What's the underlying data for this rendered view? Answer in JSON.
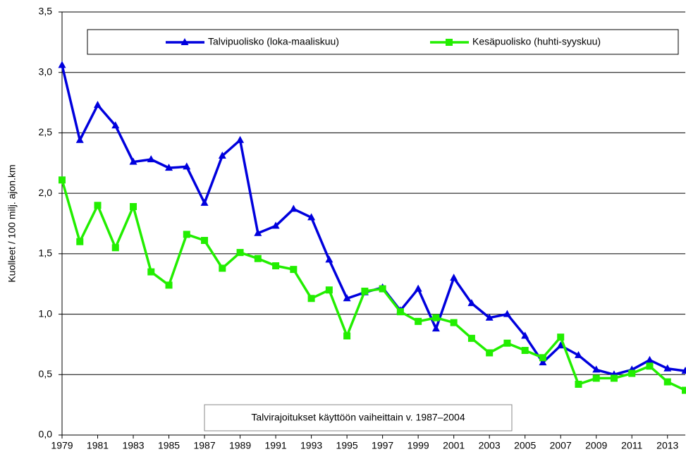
{
  "chart_data": {
    "type": "line",
    "y_label": "Kuolleet / 100 milj. ajon.km",
    "annotation": "Talvirajoitukset käyttöön vaiheittain v. 1987–2004",
    "x": [
      1979,
      1980,
      1981,
      1982,
      1983,
      1984,
      1985,
      1986,
      1987,
      1988,
      1989,
      1990,
      1991,
      1992,
      1993,
      1994,
      1995,
      1996,
      1997,
      1998,
      1999,
      2000,
      2001,
      2002,
      2003,
      2004,
      2005,
      2006,
      2007,
      2008,
      2009,
      2010,
      2011,
      2012,
      2013,
      2014
    ],
    "series": [
      {
        "name": "Talvipuolisko (loka-maaliskuu)",
        "color": "#0000dd",
        "marker": "triangle",
        "values": [
          3.06,
          2.44,
          2.73,
          2.56,
          2.26,
          2.28,
          2.21,
          2.22,
          1.92,
          2.31,
          2.44,
          1.67,
          1.73,
          1.87,
          1.8,
          1.45,
          1.13,
          1.18,
          1.22,
          1.03,
          1.21,
          0.88,
          1.3,
          1.09,
          0.97,
          1.0,
          0.82,
          0.6,
          0.74,
          0.66,
          0.54,
          0.5,
          0.54,
          0.62,
          0.55,
          0.53
        ]
      },
      {
        "name": "Kesäpuolisko (huhti-syyskuu)",
        "color": "#22ee00",
        "marker": "square",
        "values": [
          2.11,
          1.6,
          1.9,
          1.55,
          1.89,
          1.35,
          1.24,
          1.66,
          1.61,
          1.38,
          1.51,
          1.46,
          1.4,
          1.37,
          1.13,
          1.2,
          0.82,
          1.19,
          1.21,
          1.02,
          0.94,
          0.97,
          0.93,
          0.8,
          0.68,
          0.76,
          0.7,
          0.64,
          0.81,
          0.42,
          0.47,
          0.47,
          0.51,
          0.57,
          0.44,
          0.37
        ]
      }
    ],
    "xlim": [
      1979,
      2014
    ],
    "xticks": [
      1979,
      1981,
      1983,
      1985,
      1987,
      1989,
      1991,
      1993,
      1995,
      1997,
      1999,
      2001,
      2003,
      2005,
      2007,
      2009,
      2011,
      2013
    ],
    "ylim": [
      0,
      3.5
    ],
    "yticks": [
      {
        "value": 0,
        "label": "0,0"
      },
      {
        "value": 0.5,
        "label": "0,5"
      },
      {
        "value": 1,
        "label": "1,0"
      },
      {
        "value": 1.5,
        "label": "1,5"
      },
      {
        "value": 2,
        "label": "2,0"
      },
      {
        "value": 2.5,
        "label": "2,5"
      },
      {
        "value": 3,
        "label": "3,0"
      },
      {
        "value": 3.5,
        "label": "3,5"
      }
    ],
    "grid": true,
    "legend": "top"
  }
}
